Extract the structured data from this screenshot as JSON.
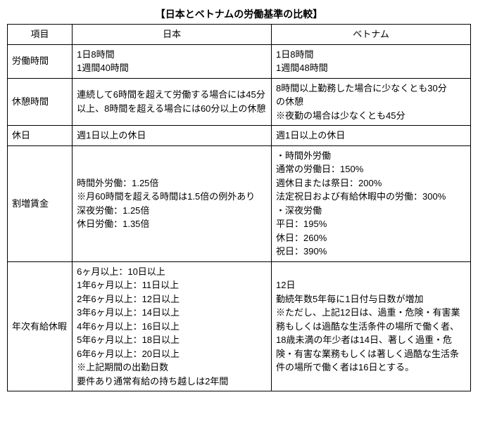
{
  "title": "【日本とベトナムの労働基準の比較】",
  "headers": {
    "col0": "項目",
    "col1": "日本",
    "col2": "ベトナム"
  },
  "rows": [
    {
      "label": "労働時間",
      "japan": [
        "1日8時間",
        "1週間40時間"
      ],
      "vietnam": [
        "1日8時間",
        "1週間48時間"
      ]
    },
    {
      "label": "休憩時間",
      "japan": [
        "連続して6時間を超えて労働する場合には45分以上、8時間を超える場合には60分以上の休憩"
      ],
      "vietnam": [
        "8時間以上勤務した場合に少なくとも30分",
        "の休憩",
        "※夜勤の場合は少なくとも45分"
      ]
    },
    {
      "label": "休日",
      "japan": [
        "週1日以上の休日"
      ],
      "vietnam": [
        "週1日以上の休日"
      ]
    },
    {
      "label": "割増賃金",
      "japan": [
        "時間外労働：1.25倍",
        "※月60時間を超える時間は1.5倍の例外あり",
        "深夜労働：1.25倍",
        "休日労働：1.35倍"
      ],
      "vietnam": [
        "・時間外労働",
        "通常の労働日：150%",
        "週休日または祭日：200%",
        "法定祝日および有給休暇中の労働：300%",
        "・深夜労働",
        "平日：195%",
        "休日：260%",
        "祝日：390%"
      ]
    },
    {
      "label": "年次有給休暇",
      "japan": [
        "6ヶ月以上：10日以上",
        "1年6ヶ月以上：11日以上",
        "2年6ヶ月以上：12日以上",
        "3年6ヶ月以上：14日以上",
        "4年6ヶ月以上：16日以上",
        "5年6ヶ月以上：18日以上",
        "6年6ヶ月以上：20日以上",
        "※上記期間の出勤日数",
        "要件あり通常有給の持ち越しは2年間"
      ],
      "vietnam": [
        "12日",
        "勤続年数5年毎に1日付与日数が増加",
        "※ただし、上記12日は、過重・危険・有害業務もしくは過酷な生活条件の場所で働く者、18歳未満の年少者は14日、著しく過重・危険・有害な業務もしくは著しく過酷な生活条件の場所で働く者は16日とする。"
      ]
    }
  ]
}
